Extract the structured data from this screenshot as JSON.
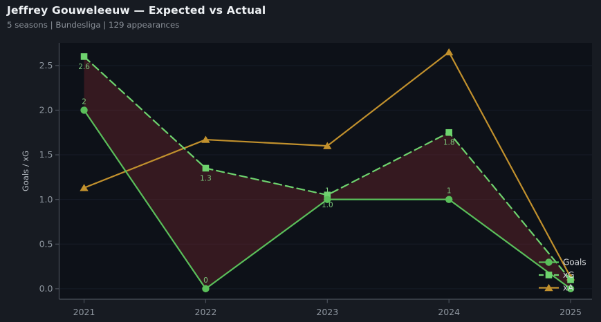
{
  "header": {
    "title": "Jeffrey Gouweleeuw — Expected vs Actual",
    "subtitle": "5 seasons | Bundesliga | 129 appearances"
  },
  "chart_data": {
    "type": "line",
    "title": "Jeffrey Gouweleeuw — Expected vs Actual",
    "xlabel": "",
    "ylabel": "Goals / xG",
    "x": [
      2021,
      2022,
      2023,
      2024,
      2025
    ],
    "x_tick_labels": [
      "2021",
      "2022",
      "2023",
      "2024",
      "2025"
    ],
    "yticks": [
      0.0,
      0.5,
      1.0,
      1.5,
      2.0,
      2.5
    ],
    "y_tick_labels": [
      "0.0",
      "0.5",
      "1.0",
      "1.5",
      "2.0",
      "2.5"
    ],
    "xlim": [
      2020.795,
      2025.176
    ],
    "ylim": [
      -0.117,
      2.754
    ],
    "grid": "horizontal",
    "legend_position": "lower-right",
    "series": [
      {
        "name": "Goals",
        "values": [
          2,
          0,
          1,
          1,
          0
        ],
        "point_labels": [
          "2",
          "0",
          "1",
          "1",
          ""
        ],
        "label_side": "above",
        "color": "#5abf5a",
        "marker": "circle",
        "line_style": "solid"
      },
      {
        "name": "xG",
        "values": [
          2.6,
          1.35,
          1.05,
          1.75,
          0.1
        ],
        "point_labels": [
          "2.6",
          "1.3",
          "1.0",
          "1.8",
          ""
        ],
        "label_side": "below",
        "color": "#6ed36e",
        "marker": "square",
        "line_style": "dashed"
      },
      {
        "name": "xA",
        "values": [
          1.13,
          1.67,
          1.6,
          2.65,
          0.13
        ],
        "point_labels": [
          "",
          "",
          "",
          "",
          ""
        ],
        "label_side": "above",
        "color": "#c2912d",
        "marker": "triangle",
        "line_style": "solid"
      }
    ],
    "fill_between": {
      "lower": "Goals",
      "upper": "xG",
      "color": "rgba(138,44,50,0.33)"
    }
  },
  "legend": {
    "items": [
      {
        "label": "Goals"
      },
      {
        "label": "xG"
      },
      {
        "label": "xA"
      }
    ]
  },
  "theme": {
    "page_bg": "#171b22",
    "plot_bg": "#0d1118",
    "grid_color": "#161c27",
    "spine_color": "#4a505a",
    "tick_label_color": "#8f97a0",
    "axis_label_color": "#b2b8bf",
    "title_color": "#eef1f4",
    "subtitle_color": "#8a9098",
    "data_label_color": "#7cc97c",
    "legend_text_color": "#d9dcdf"
  }
}
